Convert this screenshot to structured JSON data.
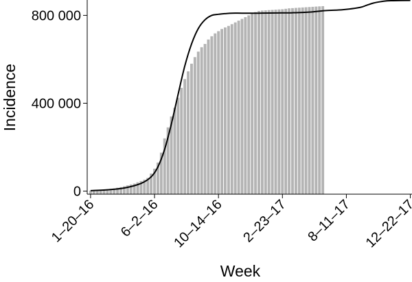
{
  "chart_data": {
    "type": "bar",
    "xlabel": "Week",
    "ylabel": "Incidence",
    "x_ticks": [
      "1–20–16",
      "6–2–16",
      "10–14–16",
      "2–23–17",
      "8–11–17",
      "12–22–17"
    ],
    "x_tick_weeks": [
      0,
      19,
      38,
      57,
      76,
      95
    ],
    "y_ticks": [
      "0",
      "400 000",
      "800 000"
    ],
    "y_tick_values": [
      0,
      400000,
      800000
    ],
    "xlim": [
      -1,
      95.5
    ],
    "ylim": [
      -14000,
      870000
    ],
    "bar_color": "#b4b4b4",
    "line_color": "#000000",
    "grid": false,
    "legend": "none",
    "series": [
      {
        "kind": "bar",
        "x_start_week": 0,
        "values": [
          2000,
          3000,
          4000,
          5000,
          6000,
          8000,
          10000,
          12000,
          15000,
          18000,
          22000,
          26000,
          30000,
          34000,
          40000,
          46000,
          52000,
          60000,
          80000,
          102000,
          130000,
          175000,
          240000,
          290000,
          340000,
          380000,
          425000,
          470000,
          510000,
          545000,
          580000,
          610000,
          635000,
          655000,
          670000,
          690000,
          705000,
          718000,
          728000,
          738000,
          745000,
          752000,
          760000,
          768000,
          776000,
          784000,
          792000,
          800000,
          810000,
          815000,
          820000,
          822000,
          823000,
          824000,
          825000,
          826000,
          827000,
          828000,
          830000,
          832000,
          833000,
          834000,
          835000,
          836000,
          837000,
          838000,
          839000,
          840000,
          841000,
          842000
        ]
      },
      {
        "kind": "line",
        "x_weeks": [
          0,
          5,
          10,
          15,
          18,
          20,
          22,
          24,
          26,
          28,
          30,
          32,
          34,
          36,
          38,
          40,
          42,
          45,
          50,
          55,
          60,
          65,
          70,
          75,
          80,
          82,
          84,
          86,
          88,
          90,
          95
        ],
        "values": [
          2000,
          6000,
          14000,
          35000,
          65000,
          110000,
          190000,
          305000,
          440000,
          570000,
          670000,
          740000,
          780000,
          800000,
          805000,
          808000,
          810000,
          810000,
          810000,
          811000,
          812000,
          815000,
          822000,
          826000,
          836000,
          846000,
          856000,
          862000,
          866000,
          867000,
          868000
        ]
      }
    ]
  }
}
